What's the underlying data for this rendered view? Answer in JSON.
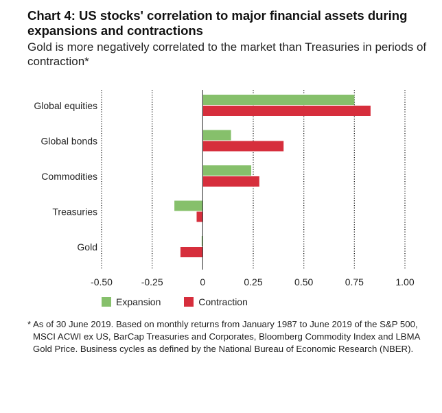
{
  "title": "Chart 4: US stocks' correlation to major financial assets during expansions and contractions",
  "subtitle": "Gold is more negatively correlated to the market than Treasuries in periods of contraction*",
  "footnote": {
    "mark": "*",
    "text": "As of 30 June 2019. Based on monthly returns from January 1987 to June 2019 of the S&P 500, MSCI ACWI ex US, BarCap Treasuries and Corporates, Bloomberg Commodity Index and LBMA Gold Price. Business cycles as defined by the National Bureau of Economic Research (NBER)."
  },
  "colors": {
    "expansion": "#86c06b",
    "contraction": "#d62e3c",
    "grid": "#222222"
  },
  "chart_data": {
    "type": "bar",
    "orientation": "horizontal",
    "categories": [
      "Global equities",
      "Global bonds",
      "Commodities",
      "Treasuries",
      "Gold"
    ],
    "series": [
      {
        "name": "Expansion",
        "values": [
          0.75,
          0.14,
          0.24,
          -0.14,
          -0.005
        ]
      },
      {
        "name": "Contraction",
        "values": [
          0.83,
          0.4,
          0.28,
          -0.03,
          -0.11
        ]
      }
    ],
    "xlim": [
      -0.5,
      1.0
    ],
    "xticks": [
      -0.5,
      -0.25,
      0,
      0.25,
      0.5,
      0.75,
      1.0
    ],
    "xtick_labels": [
      "-0.50",
      "-0.25",
      "0",
      "0.25",
      "0.50",
      "0.75",
      "1.00"
    ],
    "grid": "dotted vertical",
    "legend_position": "bottom"
  }
}
